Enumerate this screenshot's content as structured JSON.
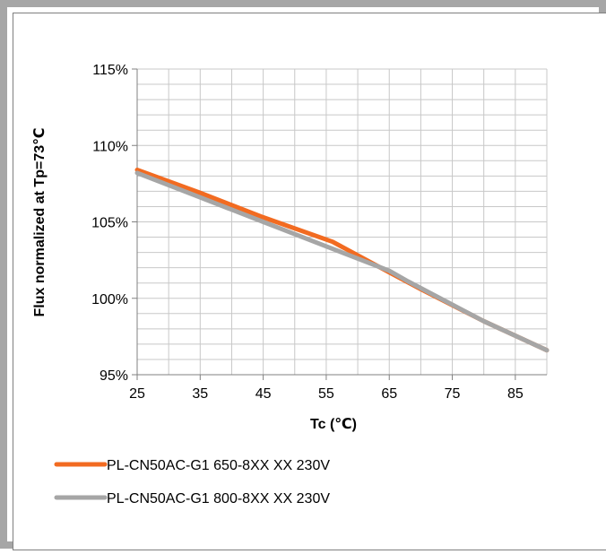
{
  "chart_data": {
    "type": "line",
    "title": "",
    "xlabel": "Tc (℃)",
    "ylabel": "Flux normalized at Tp=73℃",
    "xlim": [
      25,
      90
    ],
    "ylim": [
      95,
      115
    ],
    "x_ticks": [
      25,
      35,
      45,
      55,
      65,
      75,
      85
    ],
    "y_ticks": [
      95,
      100,
      105,
      110,
      115
    ],
    "y_tick_labels": [
      "95%",
      "100%",
      "105%",
      "110%",
      "115%"
    ],
    "grid": true,
    "legend_position": "bottom",
    "series": [
      {
        "name": "PL-CN50AC-G1 650-8XX XX 230V",
        "color": "#f26b21",
        "points": [
          [
            25,
            108.4
          ],
          [
            35,
            106.9
          ],
          [
            45,
            105.3
          ],
          [
            56,
            103.7
          ],
          [
            65,
            101.7
          ],
          [
            70,
            100.6
          ],
          [
            80,
            98.5
          ],
          [
            90,
            96.6
          ]
        ]
      },
      {
        "name": "PL-CN50AC-G1 800-8XX XX 230V",
        "color": "#a6a6a6",
        "points": [
          [
            25,
            108.2
          ],
          [
            35,
            106.6
          ],
          [
            45,
            105.0
          ],
          [
            55,
            103.4
          ],
          [
            65,
            101.8
          ],
          [
            68,
            101.1
          ],
          [
            80,
            98.5
          ],
          [
            90,
            96.6
          ]
        ]
      }
    ]
  }
}
